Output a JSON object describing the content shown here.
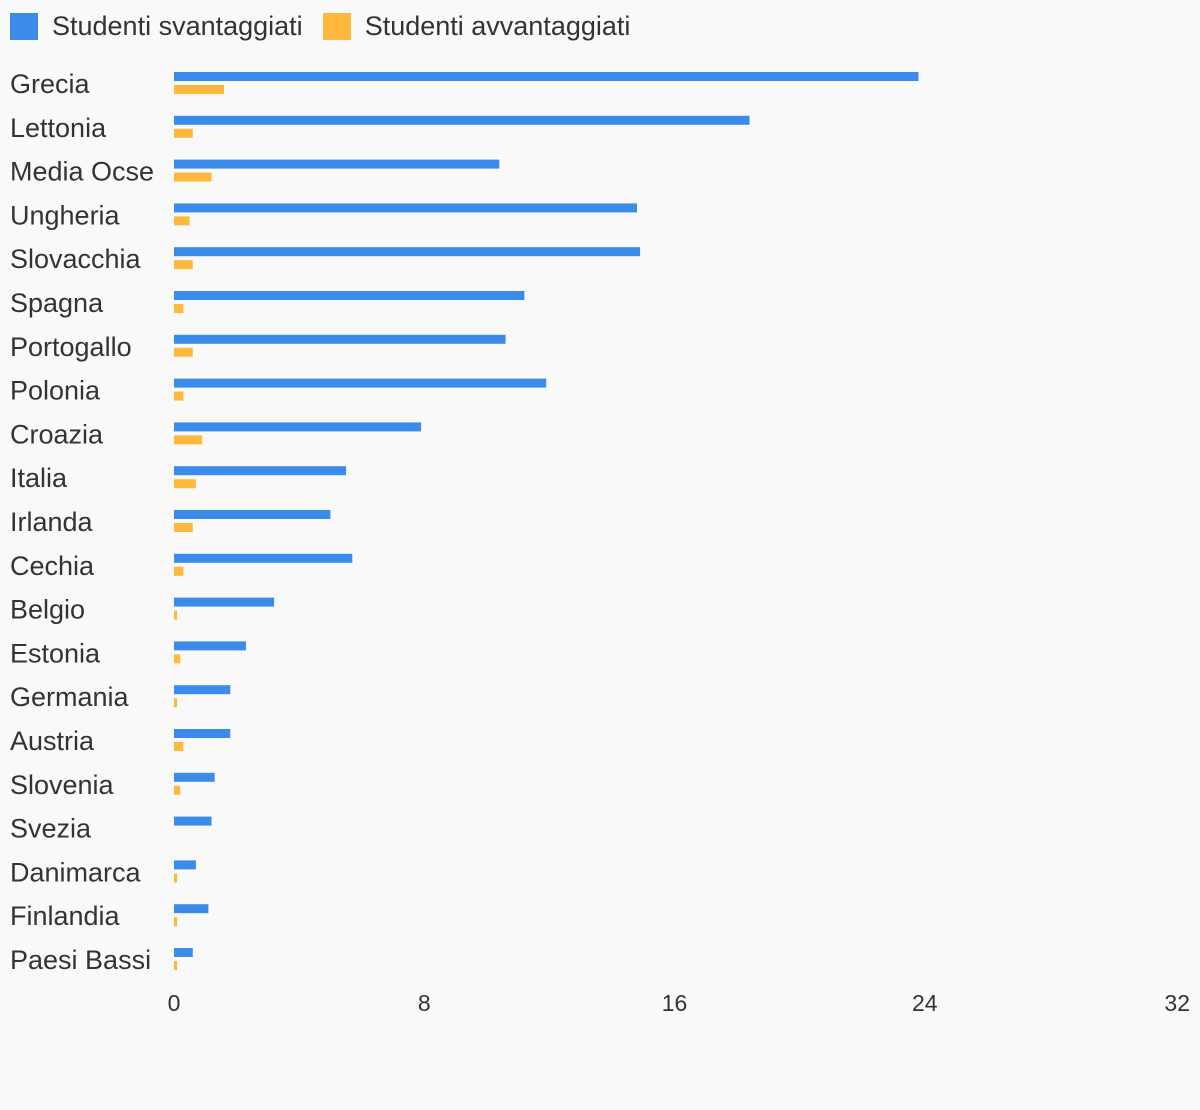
{
  "chart_data": {
    "type": "bar",
    "orientation": "horizontal",
    "categories": [
      "Grecia",
      "Lettonia",
      "Media Ocse",
      "Ungheria",
      "Slovacchia",
      "Spagna",
      "Portogallo",
      "Polonia",
      "Croazia",
      "Italia",
      "Irlanda",
      "Cechia",
      "Belgio",
      "Estonia",
      "Germania",
      "Austria",
      "Slovenia",
      "Svezia",
      "Danimarca",
      "Finlandia",
      "Paesi Bassi"
    ],
    "series": [
      {
        "name": "Studenti svantaggiati",
        "color": "#3b8beb",
        "values": [
          23.8,
          18.4,
          10.4,
          14.8,
          14.9,
          11.2,
          10.6,
          11.9,
          7.9,
          5.5,
          5.0,
          5.7,
          3.2,
          2.3,
          1.8,
          1.8,
          1.3,
          1.2,
          0.7,
          1.1,
          0.6
        ]
      },
      {
        "name": "Studenti avvantaggiati",
        "color": "#ffb83b",
        "values": [
          1.6,
          0.6,
          1.2,
          0.5,
          0.6,
          0.3,
          0.6,
          0.3,
          0.9,
          0.7,
          0.6,
          0.3,
          0.1,
          0.2,
          0.1,
          0.3,
          0.2,
          0.0,
          0.1,
          0.1,
          0.1
        ]
      }
    ],
    "xlim": [
      0,
      32
    ],
    "xticks": [
      0,
      8,
      16,
      24,
      32
    ],
    "grid": false,
    "legend": "top-left"
  }
}
